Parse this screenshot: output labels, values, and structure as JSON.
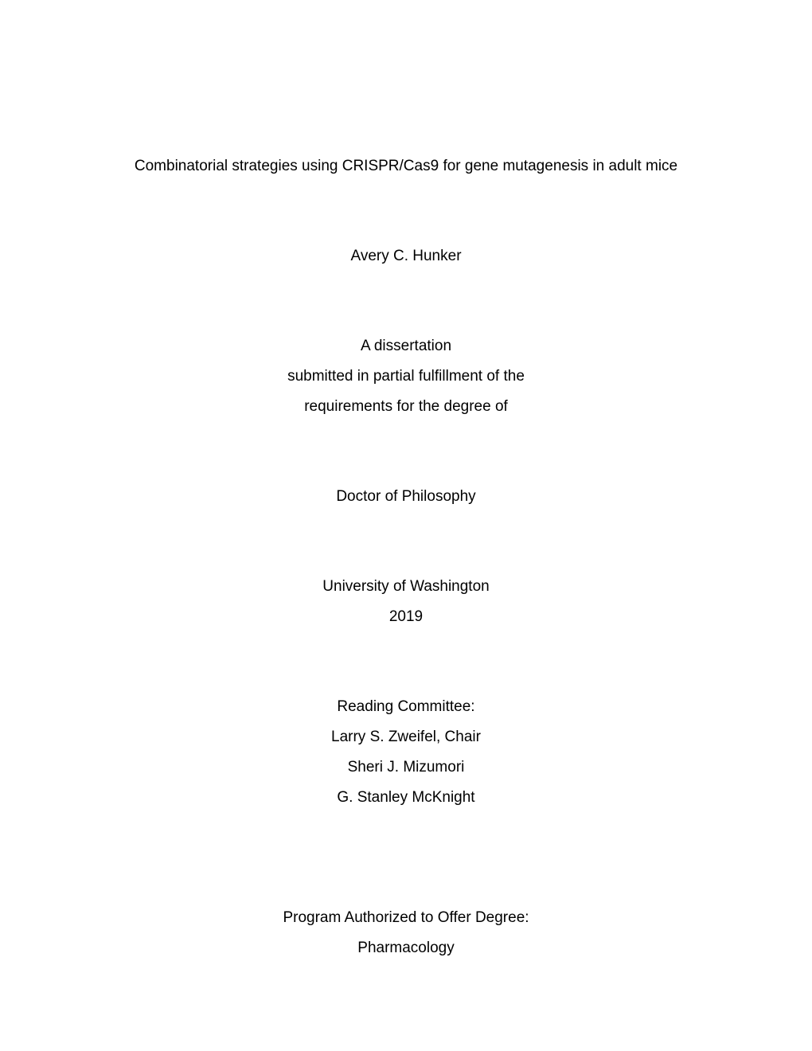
{
  "title": "Combinatorial strategies using CRISPR/Cas9 for gene mutagenesis in adult mice",
  "author": "Avery C. Hunker",
  "submission": {
    "line1": "A dissertation",
    "line2": "submitted in partial fulfillment of the",
    "line3": "requirements for the degree of"
  },
  "degree": "Doctor of Philosophy",
  "institution": {
    "name": "University of Washington",
    "year": "2019"
  },
  "committee": {
    "heading": "Reading Committee:",
    "chair": "Larry S. Zweifel, Chair",
    "member1": "Sheri J. Mizumori",
    "member2": "G. Stanley McKnight"
  },
  "program": {
    "heading": "Program Authorized to Offer Degree:",
    "name": "Pharmacology"
  }
}
